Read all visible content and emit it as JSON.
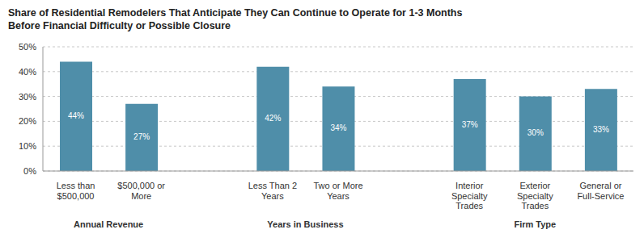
{
  "chart_data": {
    "type": "bar",
    "title": "Share of Residential Remodelers That Anticipate They Can Continue to Operate for 1-3 Months\nBefore Financial Difficulty or Possible Closure",
    "groups": [
      {
        "name": "Annual Revenue",
        "categories": [
          "Less than $500,000",
          "$500,000 or More"
        ],
        "values": [
          44,
          27
        ],
        "value_labels": [
          "44%",
          "27%"
        ]
      },
      {
        "name": "Years in Business",
        "categories": [
          "Less Than 2 Years",
          "Two or More Years"
        ],
        "values": [
          42,
          34
        ],
        "value_labels": [
          "42%",
          "34%"
        ]
      },
      {
        "name": "Firm Type",
        "categories": [
          "Interior Specialty Trades",
          "Exterior Specialty Trades",
          "General or Full-Service"
        ],
        "values": [
          37,
          30,
          33
        ],
        "value_labels": [
          "37%",
          "30%",
          "33%"
        ]
      }
    ],
    "color": "#4f8ea9",
    "ylim": [
      0,
      50
    ],
    "yticks": [
      {
        "value": 0,
        "label": "0%"
      },
      {
        "value": 10,
        "label": "10%"
      },
      {
        "value": 20,
        "label": "20%"
      },
      {
        "value": 30,
        "label": "30%"
      },
      {
        "value": 40,
        "label": "40%"
      },
      {
        "value": 50,
        "label": "50%"
      }
    ],
    "grid": true,
    "data_labels": true
  }
}
